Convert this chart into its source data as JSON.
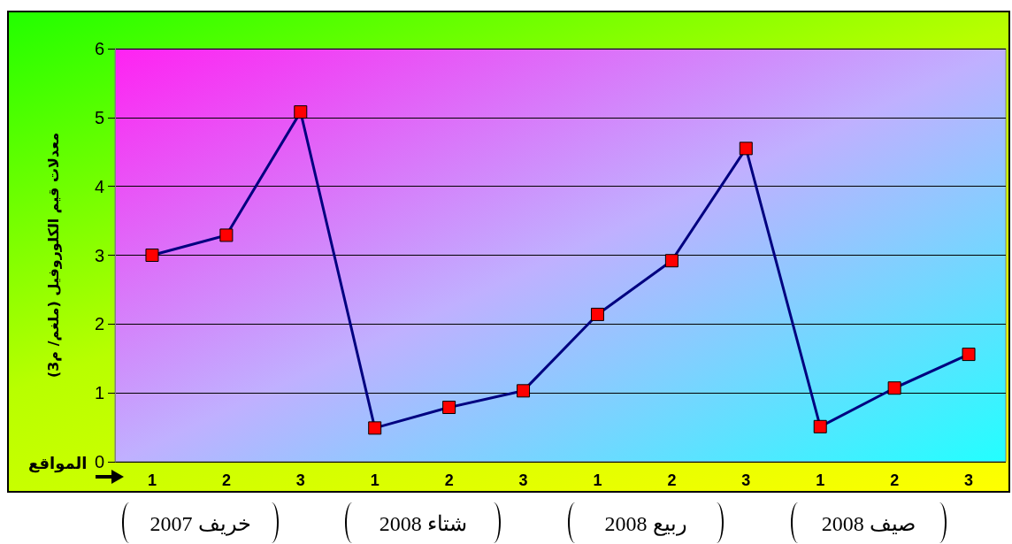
{
  "chart_data": {
    "type": "line",
    "xlabel": "المواقع",
    "ylabel": "معدلات قيم الكلوروفيل (ملغم/ م3)",
    "categories": [
      "1",
      "2",
      "3",
      "1",
      "2",
      "3",
      "1",
      "2",
      "3",
      "1",
      "2",
      "3"
    ],
    "series": [
      {
        "color": "#000080",
        "values": [
          3.0,
          3.29,
          5.08,
          0.49,
          0.79,
          1.03,
          2.14,
          2.92,
          4.55,
          0.51,
          1.07,
          1.56
        ]
      }
    ],
    "ylim": [
      0,
      6
    ],
    "yticks": [
      0,
      1,
      2,
      3,
      4,
      5,
      6
    ],
    "grid": "y",
    "marker": "square",
    "line_style": "solid",
    "annotations": [
      "خريف 2007",
      "شتاء 2008",
      "ربيع 2008",
      "صيف 2008"
    ]
  }
}
